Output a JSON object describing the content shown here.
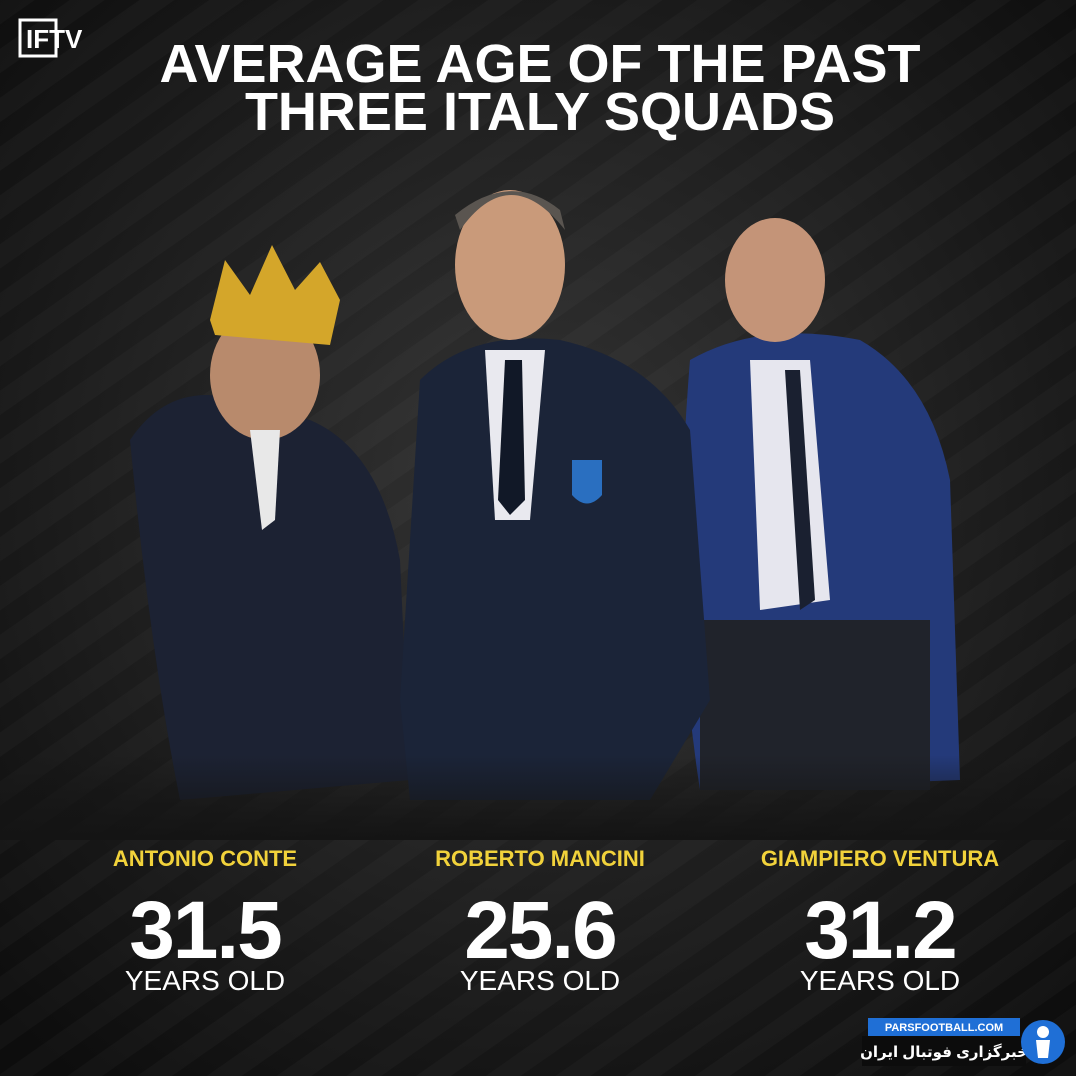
{
  "logo": "IFTV",
  "title": [
    "AVERAGE AGE OF THE PAST",
    "THREE ITALY SQUADS"
  ],
  "managers": [
    {
      "name": "ANTONIO CONTE",
      "age": 31.5,
      "unit": "YEARS OLD"
    },
    {
      "name": "ROBERTO MANCINI",
      "age": 25.6,
      "unit": "YEARS OLD"
    },
    {
      "name": "GIAMPIERO VENTURA",
      "age": 31.2,
      "unit": "YEARS OLD"
    }
  ],
  "watermark": {
    "site": "PARSFOOTBALL.COM",
    "tagline": "خبرگزاری فوتبال ایران"
  }
}
